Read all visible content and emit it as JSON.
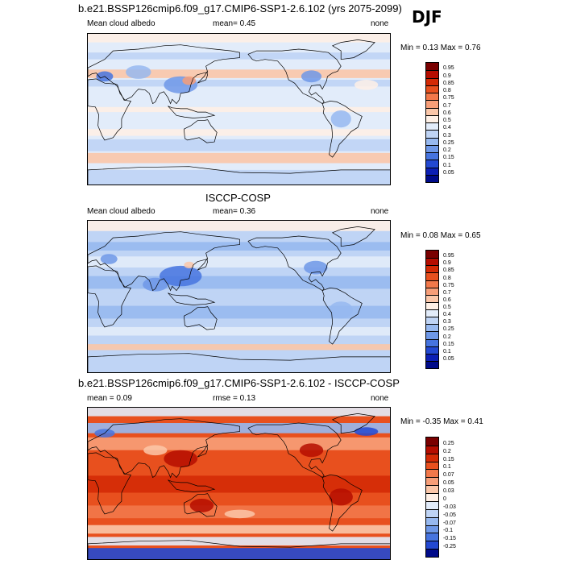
{
  "season": "DJF",
  "panels": [
    {
      "id": "model",
      "title": "b.e21.BSSP126cmip6.f09_g17.CMIP6-SSP1-2.6.102 (yrs 2075-2099)",
      "left_text": "Mean cloud albedo",
      "center_text": "mean=   0.45",
      "right_text": "none",
      "minmax": "Min =   0.13 Max =   0.76",
      "scale": "abs"
    },
    {
      "id": "obs",
      "title": "ISCCP-COSP",
      "left_text": "Mean cloud albedo",
      "center_text": "mean=   0.36",
      "right_text": "none",
      "minmax": "Min =   0.08 Max =   0.65",
      "scale": "abs"
    },
    {
      "id": "diff",
      "title": "b.e21.BSSP126cmip6.f09_g17.CMIP6-SSP1-2.6.102 - ISCCP-COSP",
      "left_text": "mean =    0.09",
      "center_text": "rmse =    0.13",
      "right_text": "none",
      "minmax": "Min = -0.35 Max =   0.41",
      "scale": "diff"
    }
  ],
  "colorbars": {
    "abs": {
      "labels": [
        "0.95",
        "0.9",
        "0.85",
        "0.8",
        "0.75",
        "0.7",
        "0.6",
        "0.5",
        "0.4",
        "0.3",
        "0.25",
        "0.2",
        "0.15",
        "0.1",
        "0.05"
      ],
      "colors": [
        "#7a0000",
        "#b50d00",
        "#d42a05",
        "#e8501e",
        "#f2784a",
        "#f79e78",
        "#fbc7a9",
        "#fef0e6",
        "#e2ecfa",
        "#bfd4f5",
        "#97b9f0",
        "#6e98e8",
        "#4674df",
        "#2349d2",
        "#0c1fb5",
        "#000b8a"
      ]
    },
    "diff": {
      "labels": [
        "0.25",
        "0.2",
        "0.15",
        "0.1",
        "0.07",
        "0.05",
        "0.03",
        "0",
        "-0.03",
        "-0.05",
        "-0.07",
        "-0.1",
        "-0.15",
        "-0.25"
      ],
      "colors": [
        "#7a0000",
        "#b50d00",
        "#d42a05",
        "#e8501e",
        "#f2784a",
        "#f79e78",
        "#fbc7a9",
        "#fef0e6",
        "#e2ecfa",
        "#bfd4f5",
        "#97b9f0",
        "#6e98e8",
        "#4674df",
        "#2349d2",
        "#000b8a"
      ]
    }
  }
}
